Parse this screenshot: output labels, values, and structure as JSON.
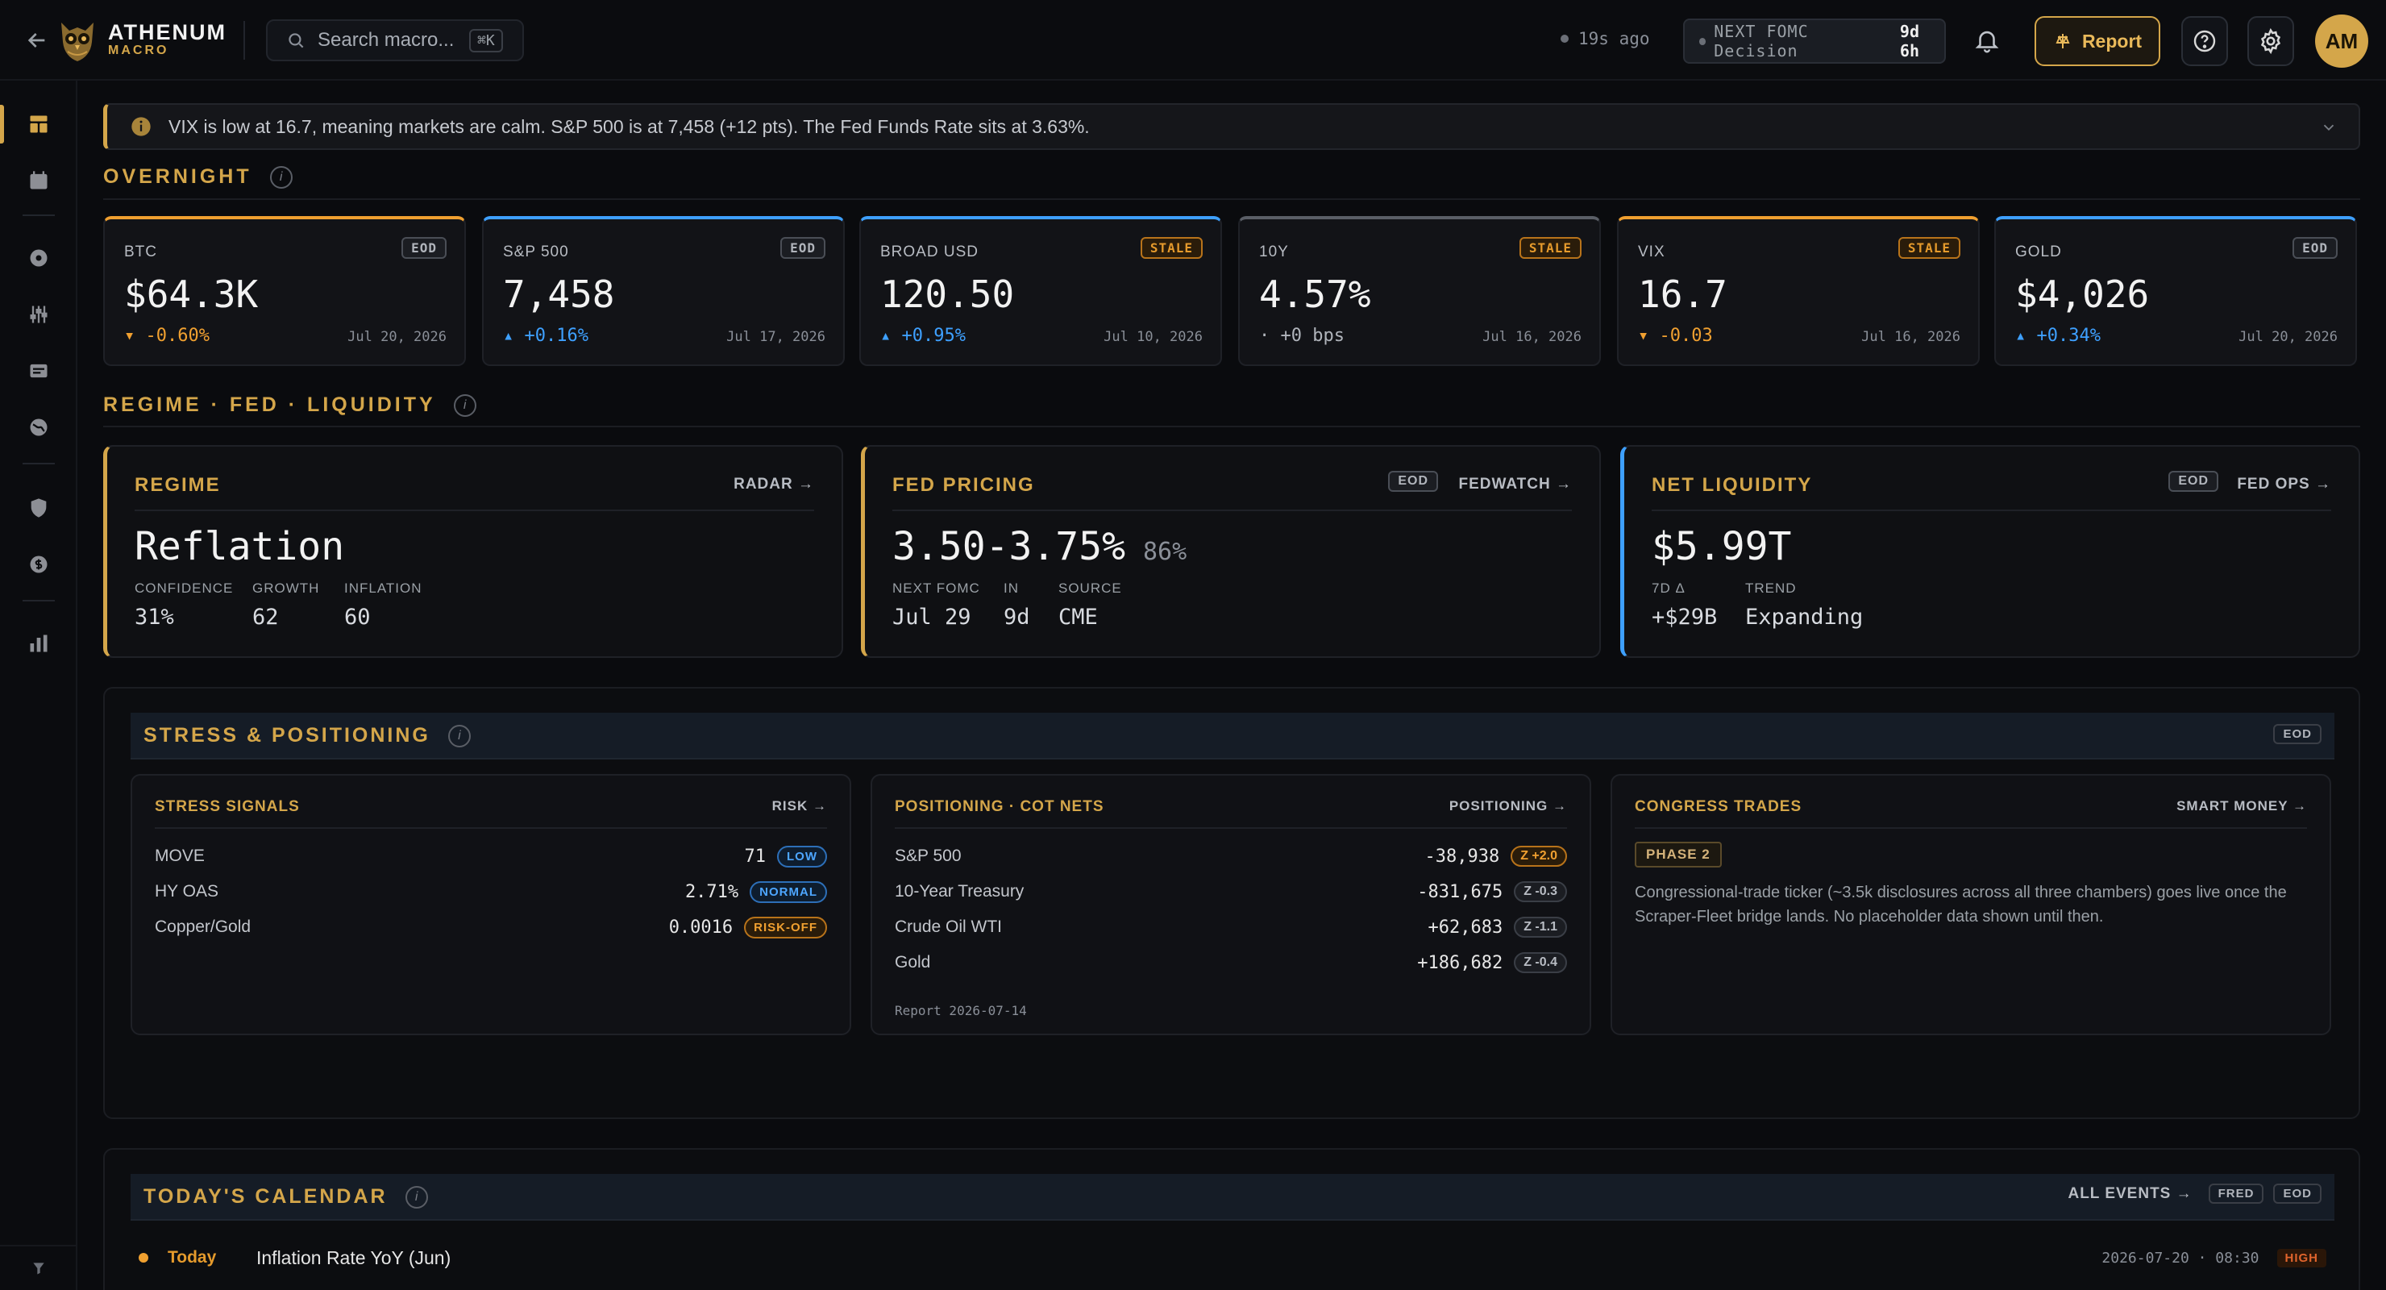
{
  "header": {
    "brand_name": "ATHENUM",
    "brand_sub": "MACRO",
    "search_placeholder": "Search macro...",
    "search_shortcut": "⌘K",
    "updated": "19s ago",
    "fomc_label": "NEXT FOMC Decision",
    "fomc_countdown": "9d 6h",
    "report_label": "Report",
    "avatar_initials": "AM"
  },
  "banner": {
    "text": "VIX is low at 16.7, meaning markets are calm. S&P 500 is at 7,458 (+12 pts). The Fed Funds Rate sits at 3.63%."
  },
  "overnight": {
    "title": "OVERNIGHT",
    "cards": [
      {
        "label": "BTC",
        "badge": "EOD",
        "value": "$64.3K",
        "change": "▾ -0.60%",
        "date": "Jul 20, 2026",
        "direction": "down",
        "accent": "#f0a030"
      },
      {
        "label": "S&P 500",
        "badge": "EOD",
        "value": "7,458",
        "change": "▴ +0.16%",
        "date": "Jul 17, 2026",
        "direction": "up",
        "accent": "#3ea0ff"
      },
      {
        "label": "BROAD USD",
        "badge": "STALE",
        "value": "120.50",
        "change": "▴ +0.95%",
        "date": "Jul 10, 2026",
        "direction": "up",
        "accent": "#3ea0ff"
      },
      {
        "label": "10Y",
        "badge": "STALE",
        "value": "4.57%",
        "change": "· +0 bps",
        "date": "Jul 16, 2026",
        "direction": "flat",
        "accent": "#5a5e66"
      },
      {
        "label": "VIX",
        "badge": "STALE",
        "value": "16.7",
        "change": "▾ -0.03",
        "date": "Jul 16, 2026",
        "direction": "down",
        "accent": "#f0a030"
      },
      {
        "label": "GOLD",
        "badge": "EOD",
        "value": "$4,026",
        "change": "▴ +0.34%",
        "date": "Jul 20, 2026",
        "direction": "up",
        "accent": "#3ea0ff"
      }
    ]
  },
  "regime_section": {
    "title": "REGIME · FED · LIQUIDITY",
    "regime": {
      "title": "REGIME",
      "link": "RADAR →",
      "value": "Reflation",
      "kv": [
        {
          "k": "CONFIDENCE",
          "v": "31%"
        },
        {
          "k": "GROWTH",
          "v": "62"
        },
        {
          "k": "INFLATION",
          "v": "60"
        }
      ]
    },
    "fed": {
      "title": "FED PRICING",
      "badge": "EOD",
      "link": "FEDWATCH →",
      "value": "3.50-3.75%",
      "prob": "86%",
      "kv": [
        {
          "k": "NEXT FOMC",
          "v": "Jul 29"
        },
        {
          "k": "IN",
          "v": "9d"
        },
        {
          "k": "SOURCE",
          "v": "CME"
        }
      ]
    },
    "liquidity": {
      "title": "NET LIQUIDITY",
      "badge": "EOD",
      "link": "FED OPS →",
      "value": "$5.99T",
      "kv": [
        {
          "k": "7D Δ",
          "v": "+$29B"
        },
        {
          "k": "TREND",
          "v": "Expanding"
        }
      ]
    }
  },
  "stress": {
    "title": "STRESS & POSITIONING",
    "badge": "EOD",
    "signals": {
      "title": "STRESS SIGNALS",
      "link": "RISK →",
      "rows": [
        {
          "name": "MOVE",
          "value": "71",
          "tag": "LOW"
        },
        {
          "name": "HY OAS",
          "value": "2.71%",
          "tag": "NORMAL"
        },
        {
          "name": "Copper/Gold",
          "value": "0.0016",
          "tag": "RISK-OFF"
        }
      ]
    },
    "positioning": {
      "title": "POSITIONING · COT NETS",
      "link": "POSITIONING →",
      "rows": [
        {
          "name": "S&P 500",
          "value": "-38,938",
          "z": "Z +2.0"
        },
        {
          "name": "10-Year Treasury",
          "value": "-831,675",
          "z": "Z -0.3"
        },
        {
          "name": "Crude Oil WTI",
          "value": "+62,683",
          "z": "Z -1.1"
        },
        {
          "name": "Gold",
          "value": "+186,682",
          "z": "Z -0.4"
        }
      ],
      "report": "Report 2026-07-14"
    },
    "congress": {
      "title": "CONGRESS TRADES",
      "link": "SMART MONEY →",
      "phase": "PHASE 2",
      "text": "Congressional-trade ticker (~3.5k disclosures across all three chambers) goes live once the Scraper-Fleet bridge lands. No placeholder data shown until then."
    }
  },
  "calendar": {
    "title": "TODAY'S CALENDAR",
    "all_events": "ALL EVENTS →",
    "badges": [
      "FRED",
      "EOD"
    ],
    "events": [
      {
        "day": "Today",
        "name": "Inflation Rate YoY (Jun)",
        "when": "2026-07-20 · 08:30",
        "importance": "HIGH"
      }
    ]
  }
}
